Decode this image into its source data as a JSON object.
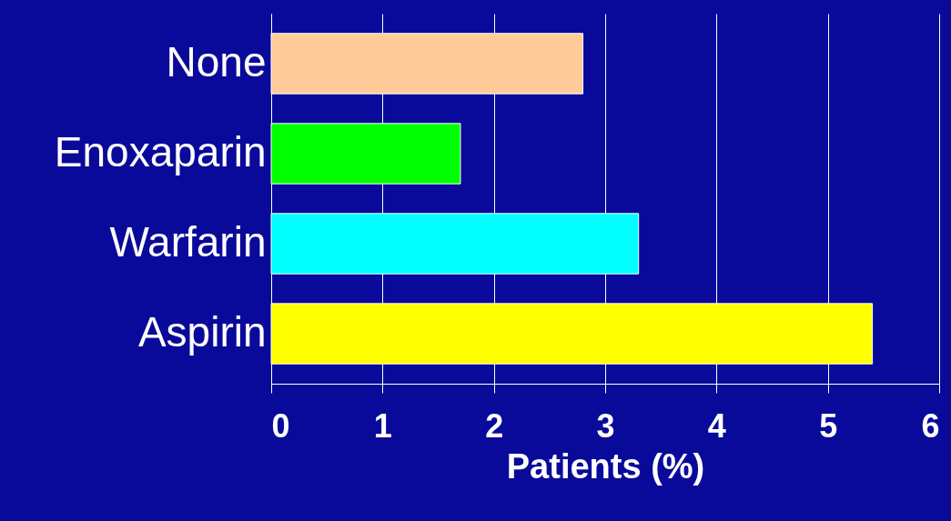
{
  "chart_data": {
    "type": "bar",
    "orientation": "horizontal",
    "categories": [
      "None",
      "Enoxaparin",
      "Warfarin",
      "Aspirin"
    ],
    "values": [
      2.8,
      1.7,
      3.3,
      5.4
    ],
    "colors": [
      "#ffcc99",
      "#00ff00",
      "#00ffff",
      "#ffff00"
    ],
    "xlim": [
      0,
      6
    ],
    "xticks": [
      0,
      1,
      2,
      3,
      4,
      5,
      6
    ],
    "xlabel": "Patients (%)",
    "grid": "x"
  }
}
